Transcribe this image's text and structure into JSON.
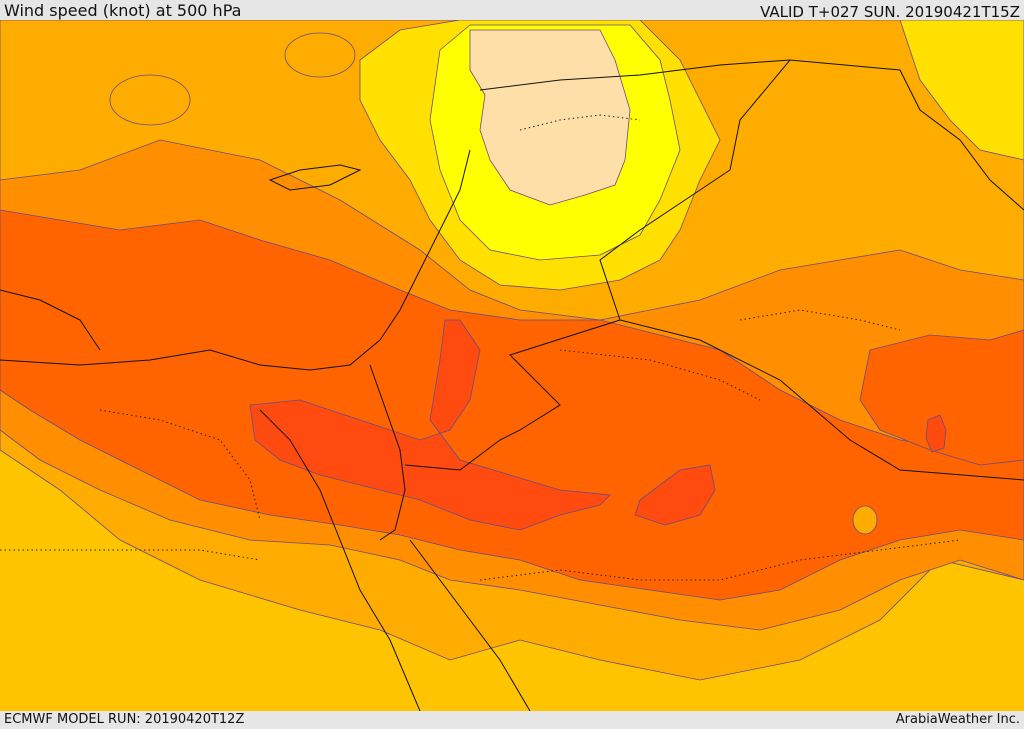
{
  "header": {
    "title": "Wind speed (knot) at 500 hPa",
    "valid": "VALID T+027 SUN. 20190421T15Z"
  },
  "footer": {
    "model_run": "ECMWF MODEL RUN: 20190420T12Z",
    "credit": "ArabiaWeather Inc."
  },
  "palette": {
    "very_light": "#ffdfa8",
    "yellow": "#ffff00",
    "light_yellow": "#ffe000",
    "gold": "#ffc400",
    "amber": "#ffac00",
    "orange": "#ff8f00",
    "dark_orange": "#ff6400",
    "red_orange": "#ff4a10",
    "contour_line": "#6a4a8a",
    "border_line": "#111111"
  }
}
